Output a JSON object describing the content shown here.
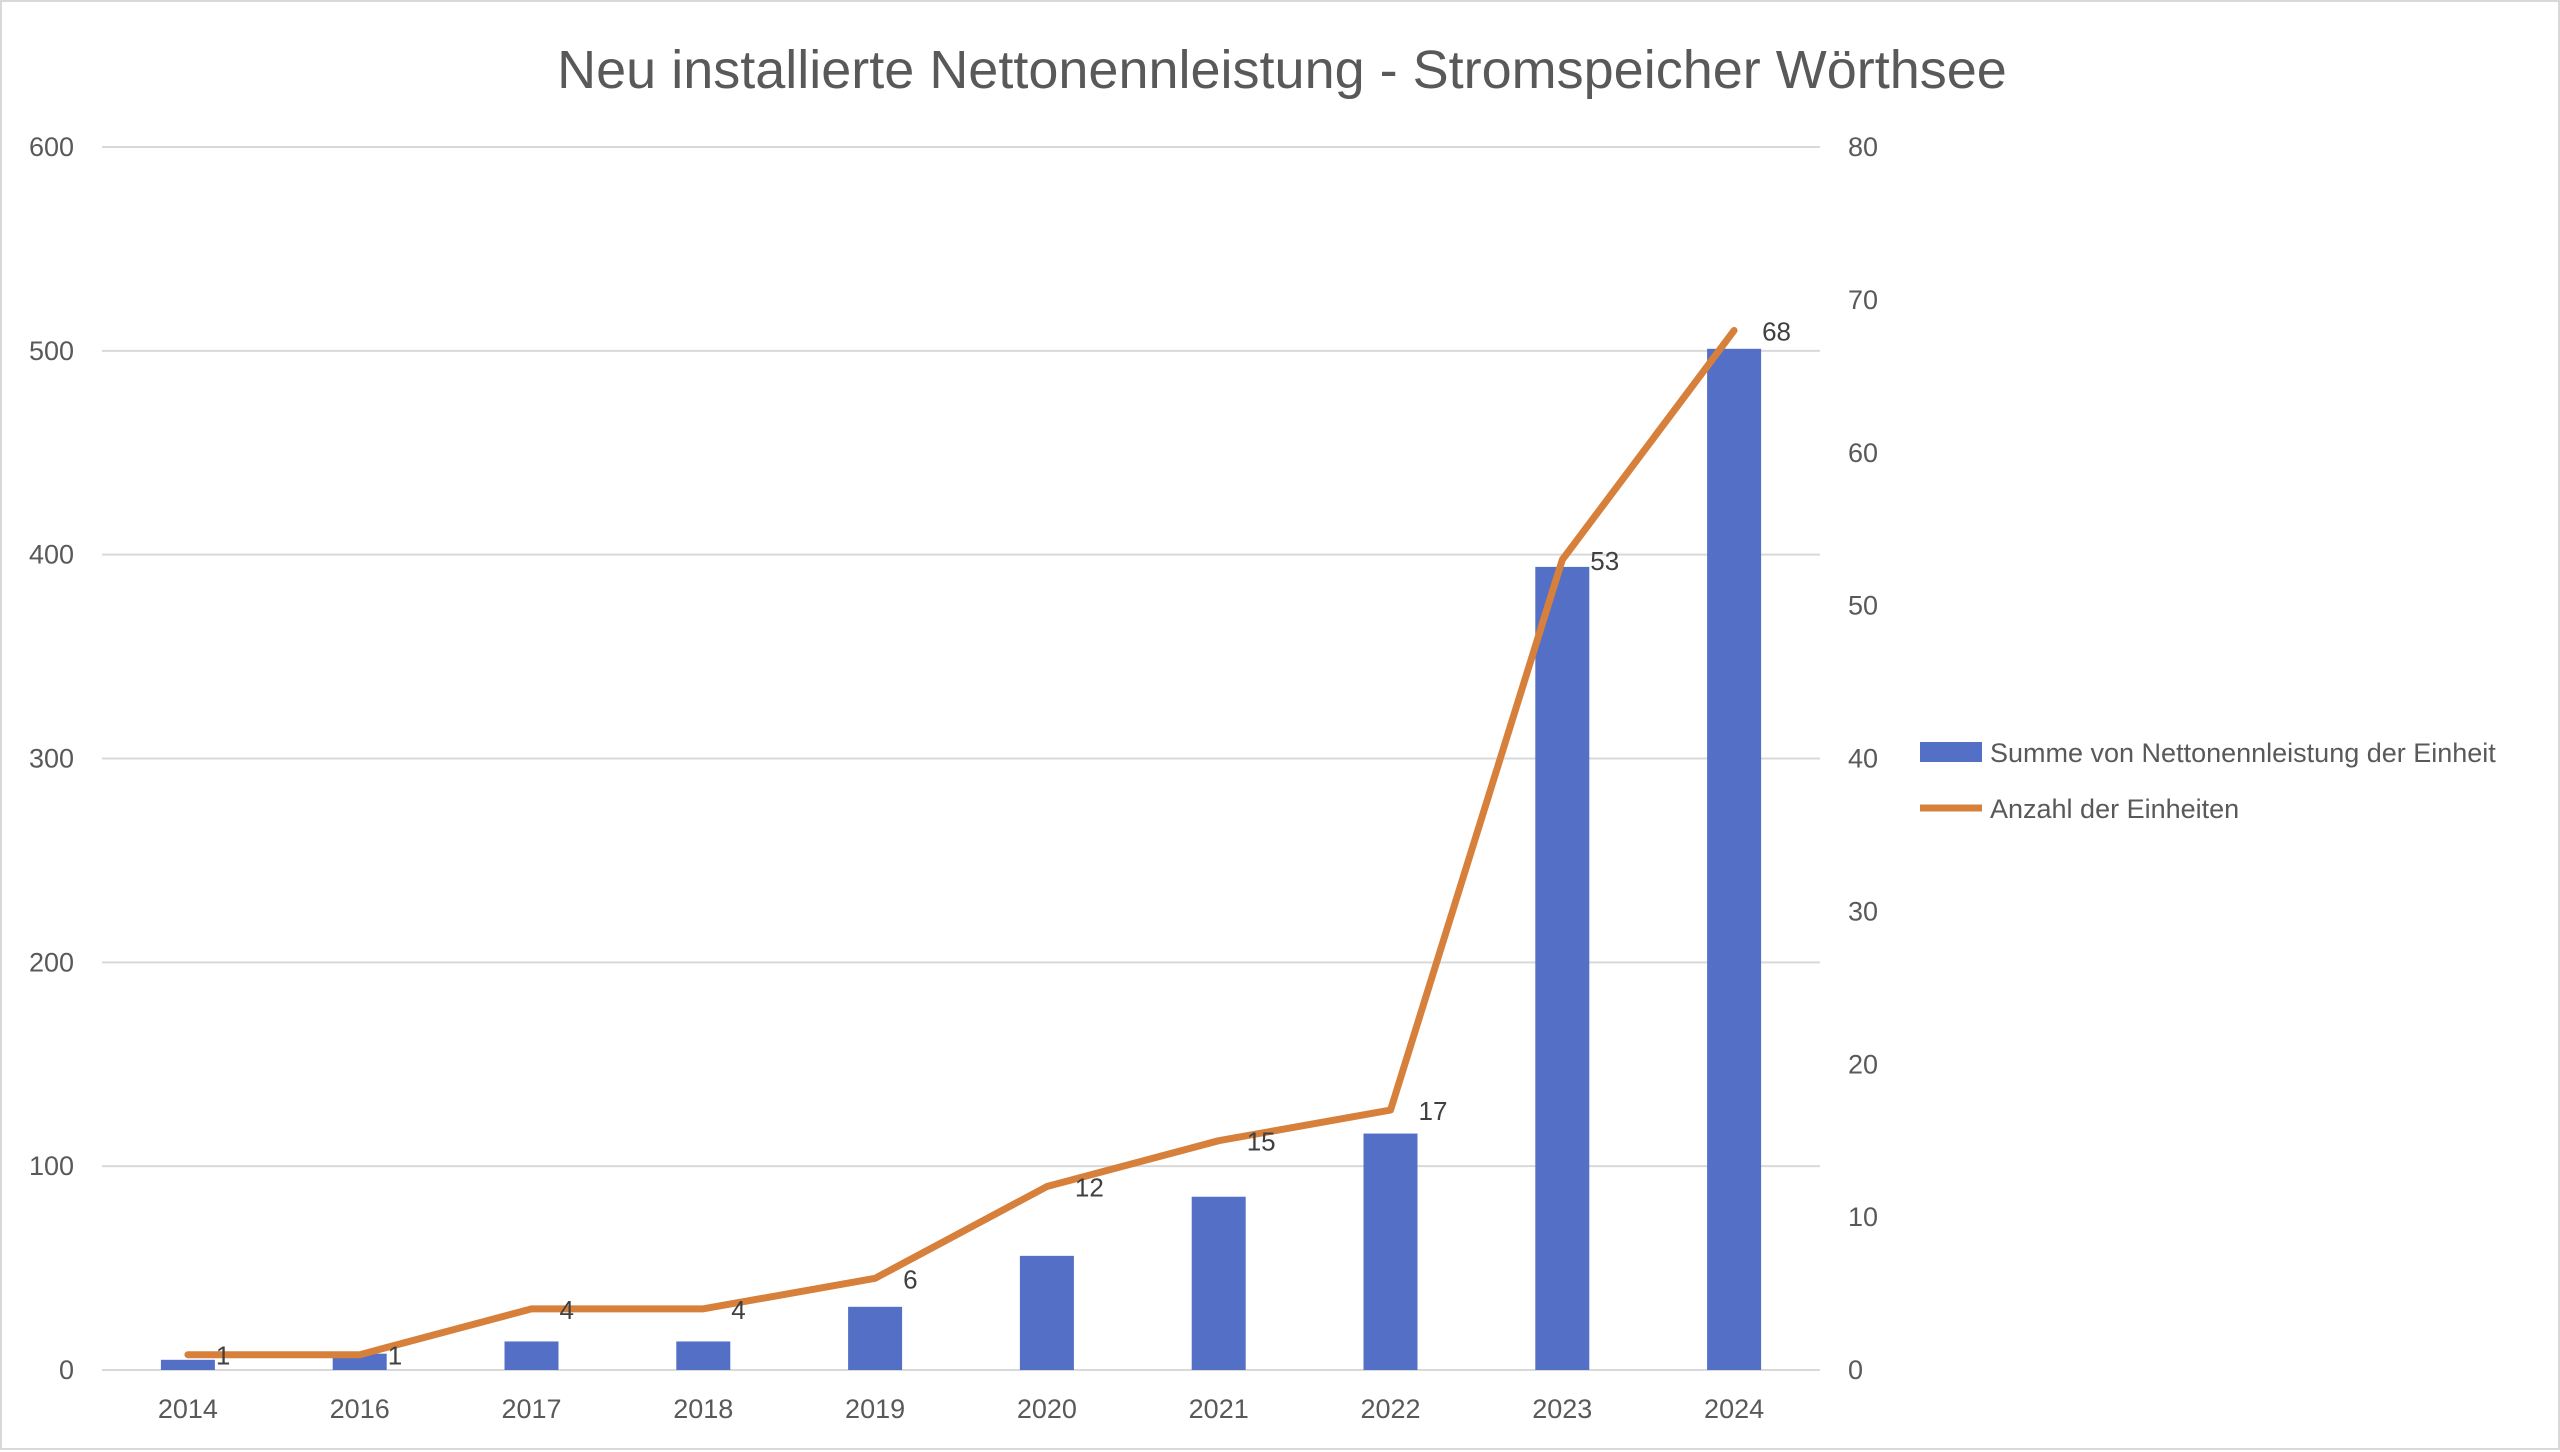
{
  "chart_data": {
    "type": "bar",
    "title": "Neu installierte Nettonennleistung - Stromspeicher Wörthsee",
    "categories": [
      "2014",
      "2016",
      "2017",
      "2018",
      "2019",
      "2020",
      "2021",
      "2022",
      "2023",
      "2024"
    ],
    "series": [
      {
        "name": "Summe von Nettonennleistung der Einheit",
        "type": "bar",
        "axis": "left",
        "color": "#5470c6",
        "values": [
          5,
          8,
          14,
          14,
          31,
          56,
          85,
          116,
          394,
          501
        ]
      },
      {
        "name": "Anzahl der Einheiten",
        "type": "line",
        "axis": "right",
        "color": "#d6803b",
        "values": [
          1,
          1,
          4,
          4,
          6,
          12,
          15,
          17,
          53,
          68
        ],
        "data_labels": [
          "1",
          "1",
          "4",
          "4",
          "6",
          "12",
          "15",
          "17",
          "53",
          "68"
        ]
      }
    ],
    "y_left": {
      "min": 0,
      "max": 600,
      "ticks": [
        "0",
        "100",
        "200",
        "300",
        "400",
        "500",
        "600"
      ]
    },
    "y_right": {
      "min": 0,
      "max": 80,
      "ticks": [
        "0",
        "10",
        "20",
        "30",
        "40",
        "50",
        "60",
        "70",
        "80"
      ]
    },
    "grid": true,
    "legend_position": "right"
  }
}
